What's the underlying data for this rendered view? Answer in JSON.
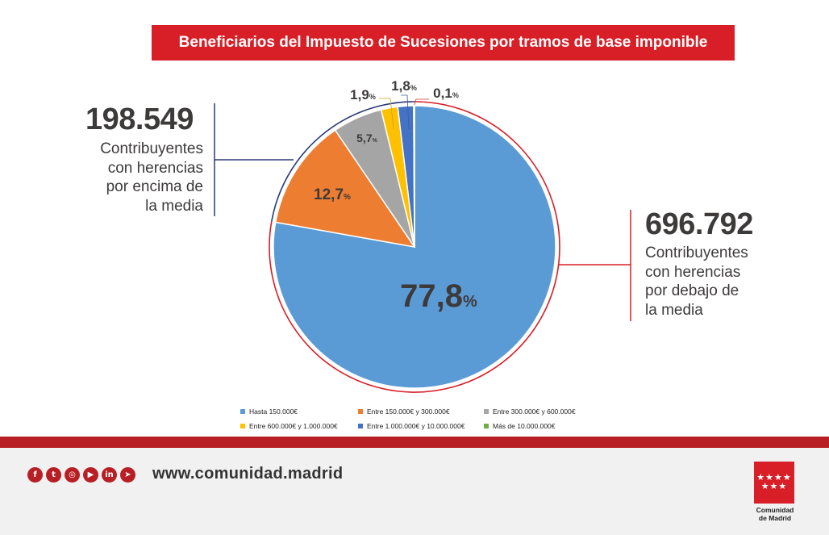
{
  "title": "Beneficiarios del Impuesto de Sucesiones por tramos de base imponible",
  "colors": {
    "accent_red": "#d81e26",
    "navy": "#2b3a7a",
    "text_dark": "#3d3a3a"
  },
  "chart_data": {
    "type": "pie",
    "title": "Beneficiarios del Impuesto de Sucesiones por tramos de base imponible",
    "categories": [
      "Hasta 150.000€",
      "Entre 150.000€ y 300.000€",
      "Entre 300.000€ y 600.000€",
      "Entre 600.000€ y 1.000.000€",
      "Entre 1.000.000€ y 10.000.000€",
      "Más de 10.000.000€"
    ],
    "values": [
      77.8,
      12.7,
      5.7,
      1.9,
      1.8,
      0.1
    ],
    "labels": [
      "77,8",
      "12,7",
      "5,7",
      "1,9",
      "1,8",
      "0,1"
    ],
    "percent_sign": "%",
    "colors": [
      "#5b9bd5",
      "#ed7d31",
      "#a5a5a5",
      "#ffc000",
      "#4472c4",
      "#70ad47"
    ],
    "legend_position": "bottom"
  },
  "annotations": {
    "left": {
      "number": "198.549",
      "lines": [
        "Contribuyentes",
        "con herencias",
        "por encima de",
        "la media"
      ]
    },
    "right": {
      "number": "696.792",
      "lines": [
        "Contribuyentes",
        "con herencias",
        "por debajo de",
        "la media"
      ]
    }
  },
  "footer": {
    "website": "www.comunidad.madrid",
    "social_icons": [
      "facebook-icon",
      "twitter-icon",
      "instagram-icon",
      "youtube-icon",
      "linkedin-icon",
      "telegram-icon"
    ],
    "social_glyphs": [
      "f",
      "t",
      "◎",
      "▶",
      "in",
      "➤"
    ],
    "logo_lines": [
      "Comunidad",
      "de Madrid"
    ],
    "logo_stars": "★★★★\n★★★"
  }
}
